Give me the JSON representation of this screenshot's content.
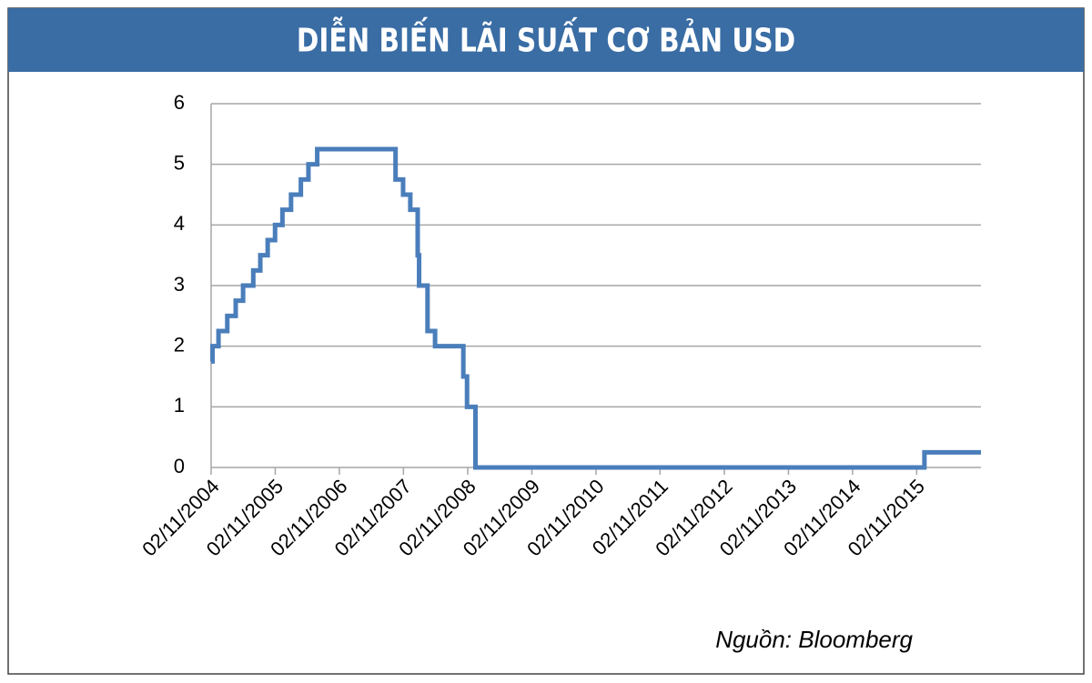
{
  "chart_data": {
    "type": "line",
    "step": true,
    "title": "DIỄN BIẾN LÃI SUẤT CƠ BẢN USD",
    "source": "Nguồn: Bloomberg",
    "x": [
      "2004-11-02",
      "2004-11-10",
      "2004-12-14",
      "2005-02-02",
      "2005-03-22",
      "2005-05-03",
      "2005-06-30",
      "2005-08-09",
      "2005-09-20",
      "2005-11-01",
      "2005-12-13",
      "2006-01-31",
      "2006-03-28",
      "2006-05-10",
      "2006-06-29",
      "2007-09-18",
      "2007-10-31",
      "2007-12-11",
      "2008-01-22",
      "2008-01-30",
      "2008-03-18",
      "2008-04-30",
      "2008-10-08",
      "2008-10-29",
      "2008-12-16",
      "2015-12-16",
      "2016-11-02"
    ],
    "series": [
      {
        "name": "USD",
        "color": "#4a7ebb",
        "values": [
          1.75,
          2,
          2.25,
          2.5,
          2.75,
          3,
          3.25,
          3.5,
          3.75,
          4,
          4.25,
          4.5,
          4.75,
          5,
          5.25,
          4.75,
          4.5,
          4.25,
          3.5,
          3,
          2.25,
          2,
          1.5,
          1,
          0,
          0.25,
          0.25
        ]
      }
    ],
    "xlim": [
      "2004-11-02",
      "2016-11-02"
    ],
    "xticks": [
      {
        "value": "2004-11-02",
        "label": "02/11/2004"
      },
      {
        "value": "2005-11-02",
        "label": "02/11/2005"
      },
      {
        "value": "2006-11-02",
        "label": "02/11/2006"
      },
      {
        "value": "2007-11-02",
        "label": "02/11/2007"
      },
      {
        "value": "2008-11-02",
        "label": "02/11/2008"
      },
      {
        "value": "2009-11-02",
        "label": "02/11/2009"
      },
      {
        "value": "2010-11-02",
        "label": "02/11/2010"
      },
      {
        "value": "2011-11-02",
        "label": "02/11/2011"
      },
      {
        "value": "2012-11-02",
        "label": "02/11/2012"
      },
      {
        "value": "2013-11-02",
        "label": "02/11/2013"
      },
      {
        "value": "2014-11-02",
        "label": "02/11/2014"
      },
      {
        "value": "2015-11-02",
        "label": "02/11/2015"
      }
    ],
    "ylim": [
      0,
      6
    ],
    "yticks": [
      0,
      1,
      2,
      3,
      4,
      5,
      6
    ],
    "grid": true
  }
}
